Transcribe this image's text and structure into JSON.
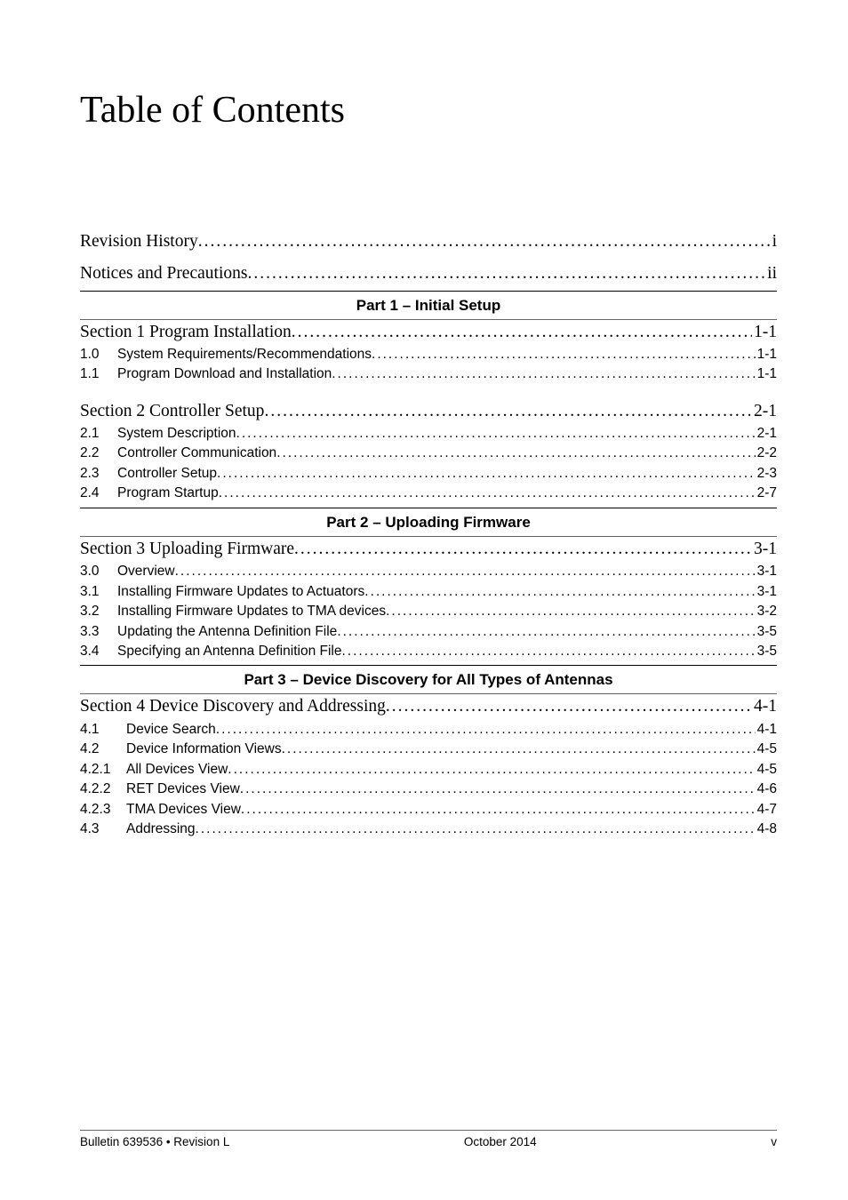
{
  "title": "Table of Contents",
  "front": [
    {
      "label": "Revision History",
      "page": "i"
    },
    {
      "label": "Notices and Precautions",
      "page": "ii"
    }
  ],
  "parts": [
    {
      "heading": "Part 1 – Initial Setup",
      "sections": [
        {
          "serif": {
            "label": "Section 1  Program Installation",
            "page": "1-1"
          },
          "items": [
            {
              "num": "1.0",
              "label": "System Requirements/Recommendations",
              "page": "1-1"
            },
            {
              "num": "1.1",
              "label": "Program Download and Installation",
              "page": "1-1"
            }
          ]
        },
        {
          "serif": {
            "label": "Section 2  Controller Setup",
            "page": "2-1"
          },
          "items": [
            {
              "num": "2.1",
              "label": "System Description",
              "page": "2-1"
            },
            {
              "num": "2.2",
              "label": "Controller Communication",
              "page": "2-2"
            },
            {
              "num": "2.3",
              "label": "Controller Setup",
              "page": "2-3"
            },
            {
              "num": "2.4",
              "label": "Program Startup",
              "page": "2-7"
            }
          ]
        }
      ]
    },
    {
      "heading": "Part 2 – Uploading Firmware",
      "sections": [
        {
          "serif": {
            "label": "Section 3  Uploading Firmware",
            "page": "3-1"
          },
          "items": [
            {
              "num": "3.0",
              "label": "Overview",
              "page": "3-1"
            },
            {
              "num": "3.1",
              "label": "Installing Firmware Updates to Actuators",
              "page": "3-1"
            },
            {
              "num": "3.2",
              "label": "Installing Firmware Updates to TMA devices",
              "page": "3-2"
            },
            {
              "num": "3.3",
              "label": "Updating the Antenna Definition File",
              "page": "3-5"
            },
            {
              "num": "3.4",
              "label": "Specifying an Antenna Definition File",
              "page": "3-5"
            }
          ]
        }
      ]
    },
    {
      "heading": "Part 3 – Device Discovery for All Types of Antennas",
      "sections": [
        {
          "serif": {
            "label": "Section 4  Device Discovery and Addressing",
            "page": "4-1"
          },
          "items": [
            {
              "num": "4.1",
              "label": "Device Search",
              "page": "4-1",
              "wide": true
            },
            {
              "num": "4.2",
              "label": "Device Information Views",
              "page": "4-5",
              "wide": true
            },
            {
              "num": "4.2.1",
              "label": "All Devices View",
              "page": "4-5",
              "wide": true
            },
            {
              "num": "4.2.2",
              "label": "RET Devices View",
              "page": "4-6",
              "wide": true
            },
            {
              "num": "4.2.3",
              "label": "TMA Devices View",
              "page": "4-7",
              "wide": true
            },
            {
              "num": "4.3",
              "label": "Addressing",
              "page": "4-8",
              "wide": true
            }
          ]
        }
      ]
    }
  ],
  "footer": {
    "left": "Bulletin 639536  •  Revision L",
    "center": "October 2014",
    "right": "v"
  }
}
